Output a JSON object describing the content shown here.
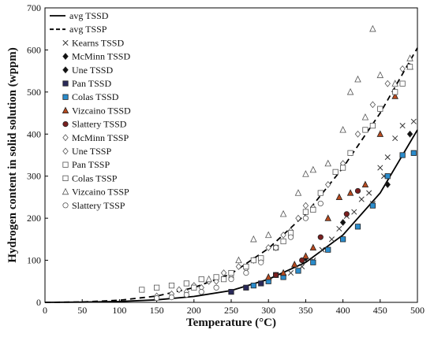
{
  "chart_data": {
    "type": "scatter",
    "xlabel": "Temperature (°C)",
    "ylabel": "Hydrogen content in solid solution (wppm)",
    "xlim": [
      0,
      500
    ],
    "ylim": [
      0,
      700
    ],
    "xticks": [
      0,
      50,
      100,
      150,
      200,
      250,
      300,
      350,
      400,
      450,
      500
    ],
    "yticks": [
      0,
      100,
      200,
      300,
      400,
      500,
      600,
      700
    ],
    "grid": false,
    "legend_position": "top-left",
    "series": [
      {
        "name": "avg TSSD",
        "kind": "line",
        "dash": "solid",
        "color": "#000000",
        "x": [
          0,
          50,
          100,
          150,
          200,
          250,
          300,
          350,
          400,
          450,
          500
        ],
        "y": [
          0,
          0.5,
          2,
          6,
          14,
          28,
          55,
          95,
          160,
          260,
          410
        ]
      },
      {
        "name": "avg TSSP",
        "kind": "line",
        "dash": "dashed",
        "color": "#000000",
        "x": [
          0,
          50,
          100,
          150,
          200,
          250,
          300,
          350,
          400,
          450,
          500
        ],
        "y": [
          0,
          1,
          5,
          15,
          35,
          68,
          128,
          210,
          320,
          450,
          605
        ]
      },
      {
        "name": "Kearns TSSD",
        "kind": "points",
        "marker": "x",
        "color": "#333333",
        "x": [
          330,
          345,
          360,
          372,
          385,
          395,
          405,
          415,
          425,
          435,
          440,
          450,
          455,
          460,
          470,
          480,
          495
        ],
        "y": [
          70,
          85,
          100,
          125,
          150,
          175,
          205,
          215,
          245,
          260,
          235,
          320,
          300,
          345,
          390,
          420,
          430
        ]
      },
      {
        "name": "McMinn TSSD",
        "kind": "points",
        "marker": "diamond-filled",
        "color": "#111111",
        "x": [
          400,
          460,
          490
        ],
        "y": [
          190,
          280,
          400
        ]
      },
      {
        "name": "Une TSSD",
        "kind": "points",
        "marker": "diamond-filled",
        "color": "#111111",
        "x": [
          300,
          350
        ],
        "y": [
          55,
          105
        ]
      },
      {
        "name": "Pan TSSD",
        "kind": "points",
        "marker": "square-filled",
        "color": "#2a2a5a",
        "x": [
          250,
          270,
          290,
          310
        ],
        "y": [
          25,
          35,
          45,
          65
        ]
      },
      {
        "name": "Colas TSSD",
        "kind": "points",
        "marker": "square-filled",
        "color": "#2a8ccc",
        "x": [
          280,
          300,
          320,
          340,
          360,
          380,
          400,
          420,
          440,
          460,
          480,
          495
        ],
        "y": [
          40,
          50,
          60,
          75,
          95,
          125,
          150,
          180,
          230,
          300,
          350,
          355
        ]
      },
      {
        "name": "Vizcaino TSSD",
        "kind": "points",
        "marker": "triangle-filled",
        "color": "#b84a1e",
        "x": [
          300,
          320,
          335,
          350,
          360,
          380,
          395,
          410,
          430,
          450,
          470,
          490
        ],
        "y": [
          60,
          70,
          90,
          110,
          130,
          200,
          250,
          260,
          280,
          400,
          490,
          560
        ]
      },
      {
        "name": "Slattery TSSD",
        "kind": "points",
        "marker": "circle-filled",
        "color": "#7a1f1f",
        "x": [
          310,
          345,
          370,
          405,
          420
        ],
        "y": [
          65,
          100,
          155,
          210,
          265
        ]
      },
      {
        "name": "McMinn TSSP",
        "kind": "points",
        "marker": "diamond-open",
        "color": "#555555",
        "x": [
          180,
          200,
          220,
          240,
          260,
          280,
          300,
          320,
          340,
          360,
          380,
          400,
          420,
          440,
          460,
          480
        ],
        "y": [
          30,
          40,
          50,
          70,
          85,
          100,
          130,
          160,
          200,
          225,
          280,
          330,
          400,
          470,
          520,
          555
        ]
      },
      {
        "name": "Une TSSP",
        "kind": "points",
        "marker": "diamond-open",
        "color": "#555555",
        "x": [
          150,
          170,
          190,
          210,
          230,
          250,
          270,
          290,
          310,
          330,
          350
        ],
        "y": [
          15,
          20,
          25,
          35,
          50,
          60,
          80,
          100,
          130,
          170,
          230
        ]
      },
      {
        "name": "Pan TSSP",
        "kind": "points",
        "marker": "square-open",
        "color": "#555555",
        "x": [
          130,
          150,
          170,
          190,
          210,
          230,
          250,
          270,
          290,
          310,
          330,
          350,
          370,
          390,
          410,
          430,
          450,
          470,
          490
        ],
        "y": [
          30,
          35,
          40,
          45,
          55,
          60,
          70,
          85,
          105,
          130,
          165,
          215,
          260,
          310,
          355,
          410,
          460,
          500,
          560
        ]
      },
      {
        "name": "Colas TSSP",
        "kind": "points",
        "marker": "square-open",
        "color": "#555555",
        "x": [
          200,
          240,
          280,
          320,
          360,
          400,
          440,
          480
        ],
        "y": [
          35,
          55,
          100,
          145,
          220,
          320,
          420,
          520
        ]
      },
      {
        "name": "Vizcaino TSSP",
        "kind": "points",
        "marker": "triangle-open",
        "color": "#555555",
        "x": [
          220,
          260,
          280,
          300,
          320,
          340,
          350,
          360,
          380,
          400,
          410,
          420,
          430,
          440,
          450,
          470,
          490
        ],
        "y": [
          55,
          100,
          150,
          160,
          210,
          260,
          305,
          315,
          330,
          410,
          500,
          530,
          440,
          650,
          540,
          520,
          580
        ]
      },
      {
        "name": "Slattery TSSP",
        "kind": "points",
        "marker": "circle-open",
        "color": "#555555",
        "x": [
          150,
          170,
          190,
          210,
          230,
          250,
          270,
          290,
          310,
          330,
          350,
          370
        ],
        "y": [
          10,
          12,
          18,
          25,
          35,
          55,
          70,
          95,
          130,
          155,
          200,
          235
        ]
      }
    ]
  }
}
